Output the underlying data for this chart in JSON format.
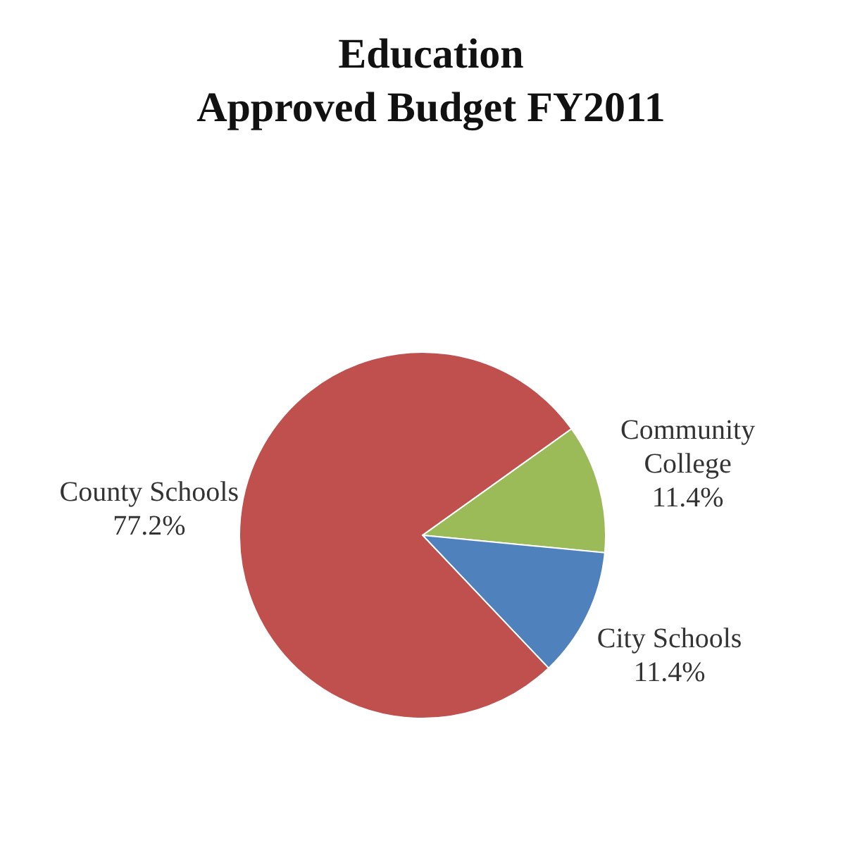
{
  "chart_data": {
    "type": "pie",
    "title": "Education\nApproved Budget FY2011",
    "categories": [
      "Community College",
      "City Schools",
      "County Schools"
    ],
    "values": [
      11.4,
      11.4,
      77.2
    ],
    "colors": [
      "#9bbb59",
      "#4f81bd",
      "#c0504d"
    ],
    "value_labels": [
      "11.4%",
      "11.4%",
      "77.2%"
    ],
    "legend": false
  }
}
